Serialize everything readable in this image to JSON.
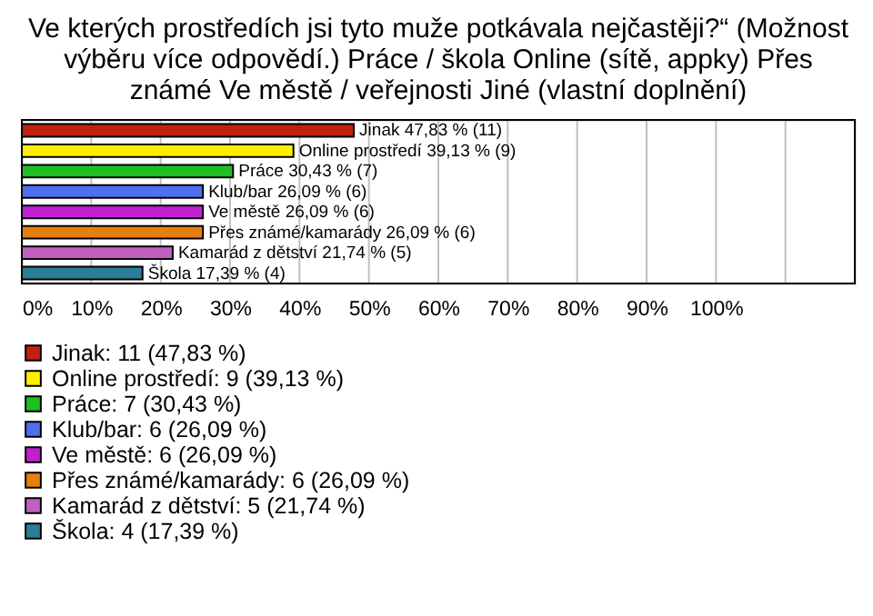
{
  "chart_data": {
    "type": "bar",
    "orientation": "horizontal",
    "title": "Ve kterých prostředích jsi tyto muže potkávala nejčastěji?“ (Možnost\nvýběru více odpovědí.)  Práce / škola  Online (sítě, appky)  Přes\nznámé  Ve městě / veřejnosti  Jiné (vlastní doplnění)",
    "categories": [
      null,
      null,
      null,
      null,
      null,
      null,
      null,
      null
    ],
    "series": [
      {
        "name": "Jinak: 11 (47,83 %)",
        "color": "#c0200f",
        "values": [
          47.83,
          null,
          null,
          null,
          null,
          null,
          null,
          null
        ],
        "value_labels": [
          "Jinak 47,83 % (11)",
          null,
          null,
          null,
          null,
          null,
          null,
          null
        ]
      },
      {
        "name": "Online prostředí: 9 (39,13 %)",
        "color": "#ffee00",
        "values": [
          null,
          39.13,
          null,
          null,
          null,
          null,
          null,
          null
        ],
        "value_labels": [
          null,
          "Online prostředí 39,13 % (9)",
          null,
          null,
          null,
          null,
          null,
          null
        ]
      },
      {
        "name": "Práce: 7 (30,43 %)",
        "color": "#1fbf1f",
        "values": [
          null,
          null,
          30.43,
          null,
          null,
          null,
          null,
          null
        ],
        "value_labels": [
          null,
          null,
          "Práce 30,43 % (7)",
          null,
          null,
          null,
          null,
          null
        ]
      },
      {
        "name": "Klub/bar: 6 (26,09 %)",
        "color": "#4f6fef",
        "values": [
          null,
          null,
          null,
          26.09,
          null,
          null,
          null,
          null
        ],
        "value_labels": [
          null,
          null,
          null,
          "Klub/bar 26,09 % (6)",
          null,
          null,
          null,
          null
        ]
      },
      {
        "name": "Ve městě: 6 (26,09 %)",
        "color": "#c020d0",
        "values": [
          null,
          null,
          null,
          null,
          26.09,
          null,
          null,
          null
        ],
        "value_labels": [
          null,
          null,
          null,
          null,
          "Ve městě 26,09 % (6)",
          null,
          null,
          null
        ]
      },
      {
        "name": "Přes známé/kamarády: 6 (26,09 %)",
        "color": "#e67e10",
        "values": [
          null,
          null,
          null,
          null,
          null,
          26.09,
          null,
          null
        ],
        "value_labels": [
          null,
          null,
          null,
          null,
          null,
          "Přes známé/kamarády 26,09 % (6)",
          null,
          null
        ]
      },
      {
        "name": "Kamarád z dětství: 5 (21,74 %)",
        "color": "#c060c0",
        "values": [
          null,
          null,
          null,
          null,
          null,
          null,
          21.74,
          null
        ],
        "value_labels": [
          null,
          null,
          null,
          null,
          null,
          null,
          "Kamarád z dětství 21,74 % (5)",
          null
        ]
      },
      {
        "name": "Škola: 4 (17,39 %)",
        "color": "#2a7f96",
        "values": [
          null,
          null,
          null,
          null,
          null,
          null,
          null,
          17.39
        ],
        "value_labels": [
          null,
          null,
          null,
          null,
          null,
          null,
          null,
          "Škola 17,39 % (4)"
        ]
      }
    ],
    "xlim": [
      0,
      120
    ],
    "xticks": [
      {
        "value": 0,
        "label": "0%"
      },
      {
        "value": 10,
        "label": "10%"
      },
      {
        "value": 20,
        "label": "20%"
      },
      {
        "value": 30,
        "label": "30%"
      },
      {
        "value": 40,
        "label": "40%"
      },
      {
        "value": 50,
        "label": "50%"
      },
      {
        "value": 60,
        "label": "60%"
      },
      {
        "value": 70,
        "label": "70%"
      },
      {
        "value": 80,
        "label": "80%"
      },
      {
        "value": 90,
        "label": "90%"
      },
      {
        "value": 100,
        "label": "100%"
      },
      {
        "value": 110,
        "label": null
      }
    ],
    "grid": "x",
    "legend": "bottom",
    "tick_labels": "x"
  }
}
